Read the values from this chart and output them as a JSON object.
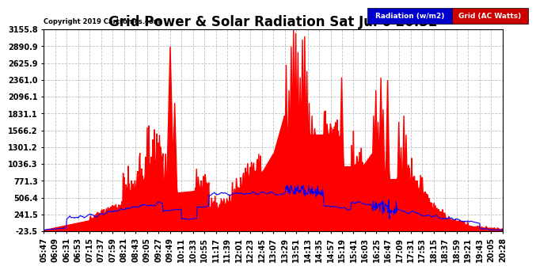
{
  "title": "Grid Power & Solar Radiation Sat Jul 6 20:32",
  "copyright": "Copyright 2019 Cartronics.com",
  "yticks": [
    3155.8,
    2890.9,
    2625.9,
    2361.0,
    2096.1,
    1831.1,
    1566.2,
    1301.2,
    1036.3,
    771.3,
    506.4,
    241.5,
    -23.5
  ],
  "ymin": -23.5,
  "ymax": 3155.8,
  "grid_color": "#bbbbbb",
  "background_color": "#ffffff",
  "plot_bg_color": "#ffffff",
  "red_fill_color": "#ff0000",
  "blue_line_color": "#0000ff",
  "title_fontsize": 12,
  "tick_fontsize": 7,
  "xtick_labels": [
    "05:47",
    "06:09",
    "06:31",
    "06:53",
    "07:15",
    "07:37",
    "07:59",
    "08:21",
    "08:43",
    "09:05",
    "09:27",
    "09:49",
    "10:11",
    "10:33",
    "10:55",
    "11:17",
    "11:39",
    "12:01",
    "12:23",
    "12:45",
    "13:07",
    "13:29",
    "13:51",
    "14:13",
    "14:35",
    "14:57",
    "15:19",
    "15:41",
    "16:03",
    "16:25",
    "16:47",
    "17:09",
    "17:31",
    "17:53",
    "18:15",
    "18:37",
    "18:59",
    "19:21",
    "19:43",
    "20:05",
    "20:28"
  ]
}
